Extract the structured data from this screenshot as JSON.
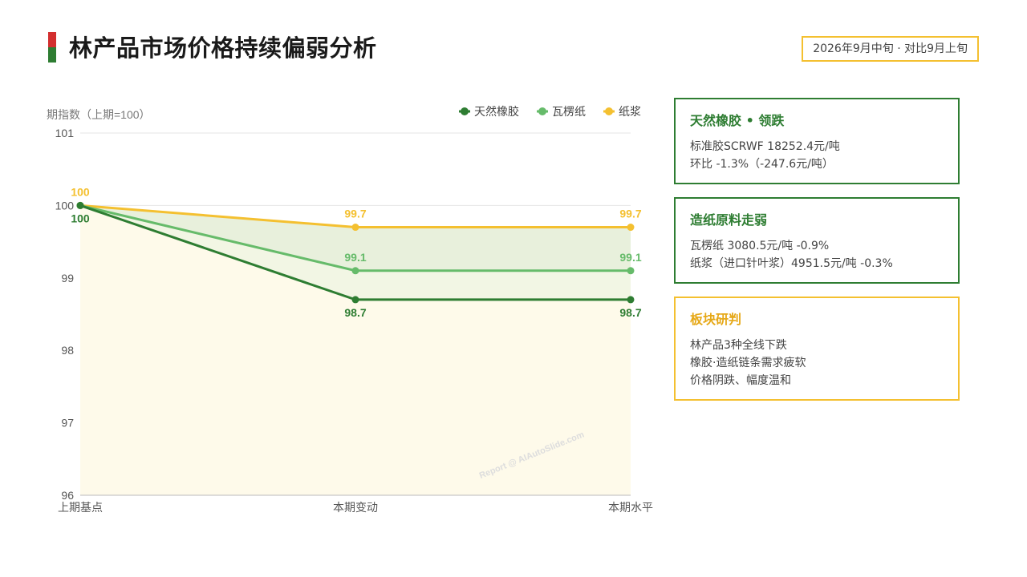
{
  "header": {
    "title": "林产品市场价格持续偏弱分析",
    "date_badge": "2026年9月中旬 · 对比9月上旬"
  },
  "colors": {
    "rubber": "#2e7d32",
    "corrugated": "#66bb6a",
    "pulp": "#f4c030",
    "accent_red": "#d32f2f"
  },
  "chart_data": {
    "type": "line",
    "ylabel": "期指数（上期=100）",
    "categories": [
      "上期基点",
      "本期变动",
      "本期水平"
    ],
    "ylim": [
      96,
      101
    ],
    "yticks": [
      96,
      97,
      98,
      99,
      100,
      101
    ],
    "grid": true,
    "legend_position": "top-right",
    "series": [
      {
        "name": "天然橡胶",
        "values": [
          100,
          98.7,
          98.7
        ],
        "labels": [
          "100",
          "98.7",
          "98.7"
        ],
        "color": "#2e7d32"
      },
      {
        "name": "瓦楞纸",
        "values": [
          100,
          99.1,
          99.1
        ],
        "labels": [
          "",
          "99.1",
          "99.1"
        ],
        "color": "#66bb6a"
      },
      {
        "name": "纸浆",
        "values": [
          100,
          99.7,
          99.7
        ],
        "labels": [
          "100",
          "99.7",
          "99.7"
        ],
        "color": "#f4c030"
      }
    ],
    "watermark": "Report @ AIAutoSlide.com"
  },
  "cards": [
    {
      "title": "天然橡胶 • 领跌",
      "lines": [
        "标准胶SCRWF 18252.4元/吨",
        "环比 -1.3%（-247.6元/吨）"
      ]
    },
    {
      "title": "造纸原料走弱",
      "lines": [
        "瓦楞纸 3080.5元/吨 -0.9%",
        "纸浆（进口针叶浆）4951.5元/吨 -0.3%"
      ]
    },
    {
      "title": "板块研判",
      "lines": [
        "林产品3种全线下跌",
        "橡胶·造纸链条需求疲软",
        "价格阴跌、幅度温和"
      ]
    }
  ]
}
